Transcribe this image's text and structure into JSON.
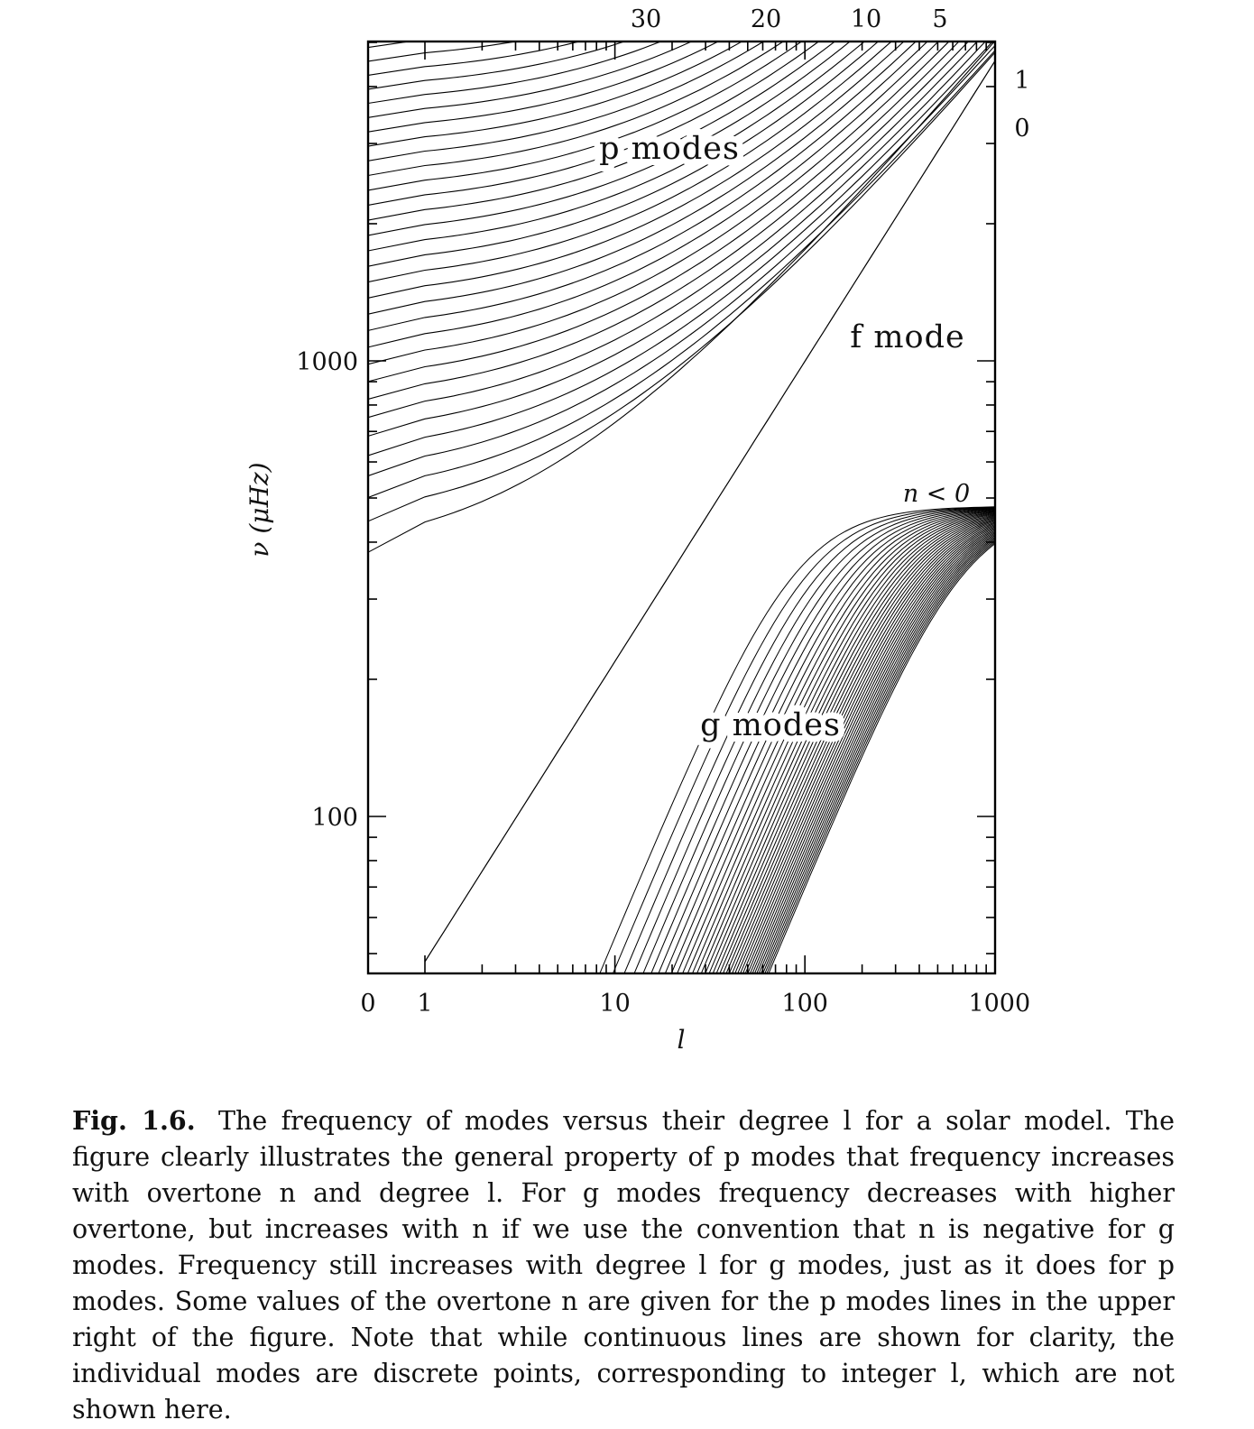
{
  "chart_data": {
    "type": "line",
    "xlabel": "l",
    "ylabel": "ν (μHz)",
    "xscale": "log",
    "yscale": "log",
    "x_tick_labels": [
      "0",
      "1",
      "10",
      "100",
      "1000"
    ],
    "y_tick_labels": [
      "100",
      "1000"
    ],
    "top_axis_labels": [
      "30",
      "20",
      "10",
      "5"
    ],
    "right_labels": [
      "1",
      "0"
    ],
    "annotations": [
      "p modes",
      "f mode",
      "g modes",
      "n < 0"
    ],
    "xlim": [
      0,
      1000
    ],
    "ylim": [
      70,
      5600
    ],
    "series": [
      {
        "group": "f mode",
        "x": [
          1,
          1000
        ],
        "y": [
          48,
          4550
        ]
      },
      {
        "group": "p modes",
        "n": 1,
        "y_at_l1": 380,
        "y_at_l1000": 5200
      },
      {
        "group": "p modes",
        "n_range": [
          1,
          33
        ],
        "y_at_l1_range": [
          380,
          5600
        ]
      },
      {
        "group": "g modes",
        "n_range": [
          -1,
          -40
        ],
        "asymptote": 480
      }
    ]
  },
  "caption": {
    "label": "Fig. 1.6.",
    "text": "The frequency of modes versus their degree l for a solar model. The figure clearly illustrates the general property of p modes that frequency increases with overtone n and degree l. For g modes frequency decreases with higher overtone, but increases with n if we use the convention that n is negative for g modes. Frequency still increases with degree l for g modes, just as it does for p modes. Some values of the overtone n are given for the p modes lines in the upper right of the figure. Note that while continuous lines are shown for clarity, the individual modes are discrete points, corresponding to integer l, which are not shown here."
  }
}
